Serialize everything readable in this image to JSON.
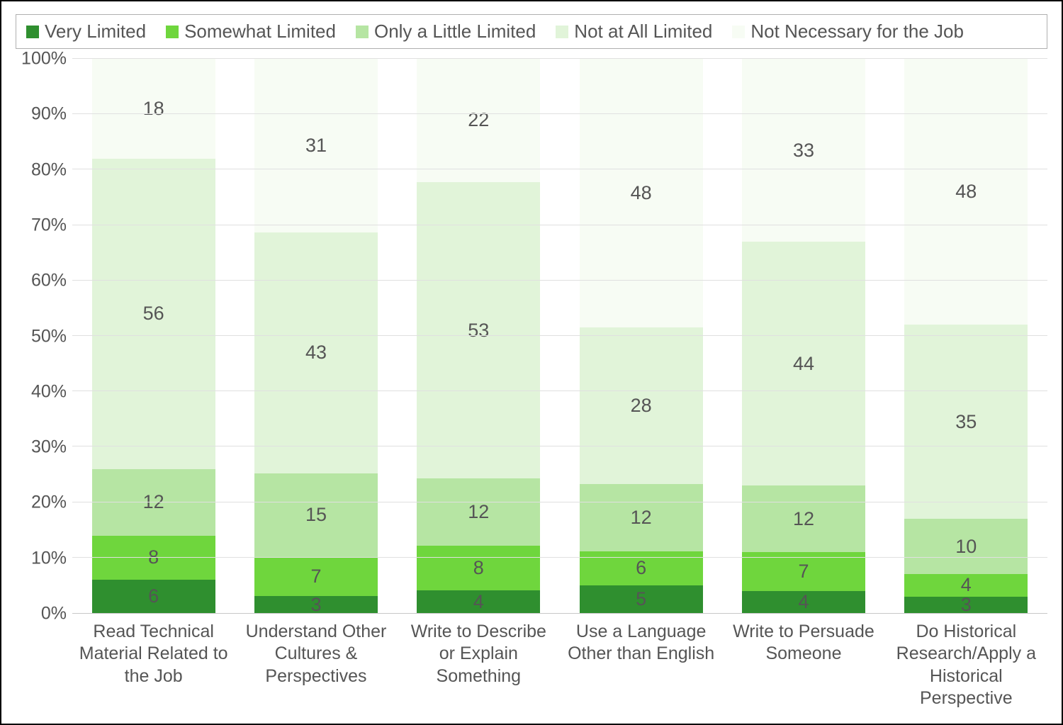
{
  "chart": {
    "type": "stacked_bar_100pct",
    "background_color": "#ffffff",
    "border_color": "#000000",
    "grid_color": "#e0e0e0",
    "text_color": "#555555",
    "font_family": "Arial",
    "legend_border_color": "#b0b0b0",
    "label_fontsize": 26,
    "axis_fontsize": 25,
    "value_fontsize": 27,
    "ylim": [
      0,
      100
    ],
    "ytick_step": 10,
    "yticks": [
      {
        "value": 0,
        "label": "0%"
      },
      {
        "value": 10,
        "label": "10%"
      },
      {
        "value": 20,
        "label": "20%"
      },
      {
        "value": 30,
        "label": "30%"
      },
      {
        "value": 40,
        "label": "40%"
      },
      {
        "value": 50,
        "label": "50%"
      },
      {
        "value": 60,
        "label": "60%"
      },
      {
        "value": 70,
        "label": "70%"
      },
      {
        "value": 80,
        "label": "80%"
      },
      {
        "value": 90,
        "label": "90%"
      },
      {
        "value": 100,
        "label": "100%"
      }
    ],
    "series": [
      {
        "key": "very_limited",
        "label": "Very Limited",
        "color": "#2f8f2f"
      },
      {
        "key": "somewhat_limited",
        "label": "Somewhat Limited",
        "color": "#6fd63d"
      },
      {
        "key": "only_little_limited",
        "label": "Only a Little Limited",
        "color": "#b6e5a3"
      },
      {
        "key": "not_at_all_limited",
        "label": "Not at All Limited",
        "color": "#e1f4d9"
      },
      {
        "key": "not_necessary",
        "label": "Not Necessary for the Job",
        "color": "#f7fcf4"
      }
    ],
    "categories": [
      {
        "label": "Read Technical Material Related to the Job",
        "values": {
          "very_limited": 6,
          "somewhat_limited": 8,
          "only_little_limited": 12,
          "not_at_all_limited": 56,
          "not_necessary": 18
        }
      },
      {
        "label": "Understand Other Cultures & Perspectives",
        "values": {
          "very_limited": 3,
          "somewhat_limited": 7,
          "only_little_limited": 15,
          "not_at_all_limited": 43,
          "not_necessary": 31
        }
      },
      {
        "label": "Write to Describe or Explain Something",
        "values": {
          "very_limited": 4,
          "somewhat_limited": 8,
          "only_little_limited": 12,
          "not_at_all_limited": 53,
          "not_necessary": 22
        }
      },
      {
        "label": "Use a Language Other than English",
        "values": {
          "very_limited": 5,
          "somewhat_limited": 6,
          "only_little_limited": 12,
          "not_at_all_limited": 28,
          "not_necessary": 48
        }
      },
      {
        "label": "Write to Persuade Someone",
        "values": {
          "very_limited": 4,
          "somewhat_limited": 7,
          "only_little_limited": 12,
          "not_at_all_limited": 44,
          "not_necessary": 33
        }
      },
      {
        "label": "Do Historical Research/Apply a Historical Perspective",
        "values": {
          "very_limited": 3,
          "somewhat_limited": 4,
          "only_little_limited": 10,
          "not_at_all_limited": 35,
          "not_necessary": 48
        }
      }
    ],
    "bar_width_ratio": 0.76
  }
}
